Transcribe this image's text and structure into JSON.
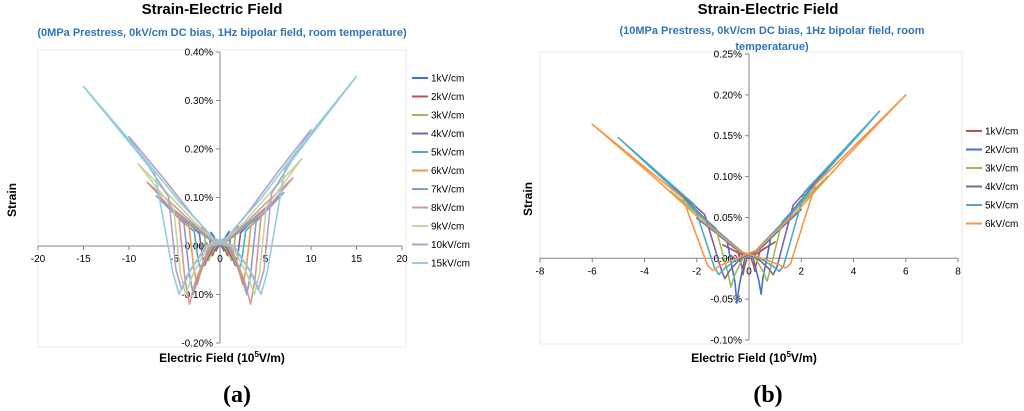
{
  "chart_data": [
    {
      "type": "line",
      "panel_label": "(a)",
      "title": "Strain-Electric Field",
      "subtitle": [
        "(0MPa Prestress, 0kV/cm DC bias, 1Hz bipolar field, room temperature)"
      ],
      "xlabel": "Electric Field (10",
      "xlabel_sup": "5",
      "xlabel_tail": "V/m)",
      "ylabel": "Strain",
      "xlim": [
        -20,
        20
      ],
      "ylim": [
        -0.2,
        0.4
      ],
      "xticks": [
        "-20",
        "-15",
        "-10",
        "-5",
        "0",
        "5",
        "10",
        "15",
        "20"
      ],
      "xtick_values": [
        -20,
        -15,
        -10,
        -5,
        0,
        5,
        10,
        15,
        20
      ],
      "yticks": [
        "-0.20%",
        "-0.10%",
        "0.00%",
        "0.10%",
        "0.20%",
        "0.30%",
        "0.40%"
      ],
      "ytick_values": [
        -0.2,
        -0.1,
        0,
        0.1,
        0.2,
        0.3,
        0.4
      ],
      "legend_position": "right",
      "series": [
        {
          "name": "1kV/cm",
          "color": "#4472c4",
          "amp": 1,
          "s_max": 0.03,
          "s_min": -0.01
        },
        {
          "name": "2kV/cm",
          "color": "#c0504d",
          "amp": 2,
          "s_max": 0.04,
          "s_min": -0.02
        },
        {
          "name": "3kV/cm",
          "color": "#9bbb59",
          "amp": 3,
          "s_max": 0.05,
          "s_min": -0.03
        },
        {
          "name": "4kV/cm",
          "color": "#8064a2",
          "amp": 4,
          "s_max": 0.06,
          "s_min": -0.04
        },
        {
          "name": "5kV/cm",
          "color": "#4bacc6",
          "amp": 5,
          "s_max": 0.07,
          "s_min": -0.05
        },
        {
          "name": "6kV/cm",
          "color": "#f79646",
          "amp": 6,
          "s_max": 0.09,
          "s_min": -0.08
        },
        {
          "name": "7kV/cm",
          "color": "#7f9fcf",
          "amp": 7,
          "s_max": 0.11,
          "s_min": -0.1
        },
        {
          "name": "8kV/cm",
          "color": "#d99694",
          "amp": 8,
          "s_max": 0.14,
          "s_min": -0.12
        },
        {
          "name": "9kV/cm",
          "color": "#c3d69b",
          "amp": 9,
          "s_max": 0.18,
          "s_min": -0.1
        },
        {
          "name": "10kV/cm",
          "color": "#b3a2c7",
          "amp": 10,
          "s_max": 0.24,
          "s_min": -0.09
        },
        {
          "name": "15kV/cm",
          "color": "#92cddc",
          "amp": 15,
          "s_max": 0.35,
          "s_min": -0.1
        }
      ]
    },
    {
      "type": "line",
      "panel_label": "(b)",
      "title": "Strain-Electric Field",
      "subtitle": [
        "(10MPa Prestress, 0kV/cm DC bias, 1Hz bipolar field, room",
        "temperatarue)"
      ],
      "xlabel": "Electric Field (10",
      "xlabel_sup": "5",
      "xlabel_tail": "V/m)",
      "ylabel": "Strain",
      "xlim": [
        -8,
        8
      ],
      "ylim": [
        -0.1,
        0.25
      ],
      "xticks": [
        "-8",
        "-6",
        "-4",
        "-2",
        "0",
        "2",
        "4",
        "6",
        "8"
      ],
      "xtick_values": [
        -8,
        -6,
        -4,
        -2,
        0,
        2,
        4,
        6,
        8
      ],
      "yticks": [
        "-0.10%",
        "-0.05%",
        "0.00%",
        "0.05%",
        "0.10%",
        "0.15%",
        "0.20%",
        "0.25%"
      ],
      "ytick_values": [
        -0.1,
        -0.05,
        0,
        0.05,
        0.1,
        0.15,
        0.2,
        0.25
      ],
      "legend_position": "right",
      "series": [
        {
          "name": "1kV/cm",
          "color": "#c0504d",
          "amp": 1,
          "s_max": 0.02,
          "s_min": -0.02
        },
        {
          "name": "2kV/cm",
          "color": "#4472c4",
          "amp": 2,
          "s_max": 0.06,
          "s_min": -0.055
        },
        {
          "name": "3kV/cm",
          "color": "#9bbb59",
          "amp": 3,
          "s_max": 0.1,
          "s_min": -0.035
        },
        {
          "name": "4kV/cm",
          "color": "#8064a2",
          "amp": 4,
          "s_max": 0.145,
          "s_min": -0.025
        },
        {
          "name": "5kV/cm",
          "color": "#4bacc6",
          "amp": 5,
          "s_max": 0.18,
          "s_min": -0.02
        },
        {
          "name": "6kV/cm",
          "color": "#f79646",
          "amp": 6,
          "s_max": 0.2,
          "s_min": -0.015
        }
      ]
    }
  ]
}
